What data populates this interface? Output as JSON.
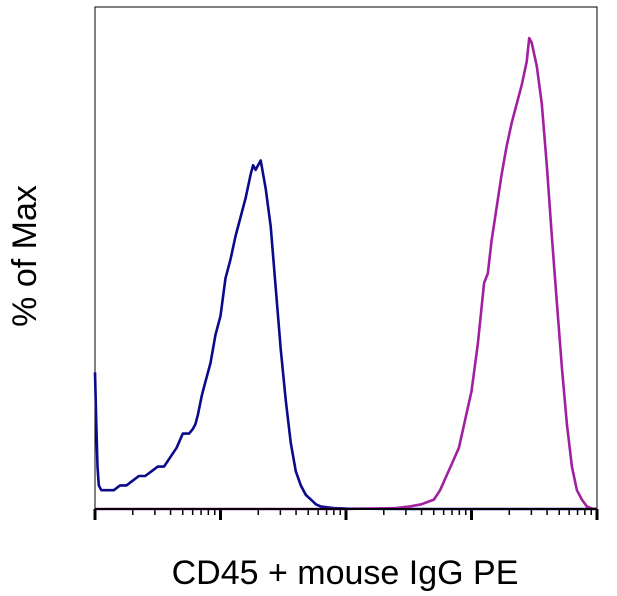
{
  "chart_data": {
    "type": "line",
    "title": "",
    "xlabel": "CD45 + mouse IgG PE",
    "ylabel": "% of Max",
    "x_scale": "log",
    "x_range_decades": [
      0,
      4
    ],
    "y_range": [
      0,
      100
    ],
    "grid": false,
    "legend": "none",
    "series": [
      {
        "color": "#0a0a8a",
        "points": [
          [
            0.0,
            29
          ],
          [
            0.01,
            18
          ],
          [
            0.02,
            9
          ],
          [
            0.03,
            5
          ],
          [
            0.05,
            4
          ],
          [
            0.1,
            4
          ],
          [
            0.15,
            4
          ],
          [
            0.2,
            5
          ],
          [
            0.25,
            5
          ],
          [
            0.3,
            6
          ],
          [
            0.35,
            7
          ],
          [
            0.4,
            7
          ],
          [
            0.45,
            8
          ],
          [
            0.5,
            9
          ],
          [
            0.55,
            9
          ],
          [
            0.6,
            11
          ],
          [
            0.65,
            13
          ],
          [
            0.7,
            16
          ],
          [
            0.75,
            16
          ],
          [
            0.78,
            17
          ],
          [
            0.8,
            18
          ],
          [
            0.82,
            20
          ],
          [
            0.85,
            24
          ],
          [
            0.88,
            27
          ],
          [
            0.92,
            31
          ],
          [
            0.96,
            37
          ],
          [
            1.0,
            41
          ],
          [
            1.04,
            49
          ],
          [
            1.08,
            53
          ],
          [
            1.12,
            58
          ],
          [
            1.16,
            62
          ],
          [
            1.2,
            66
          ],
          [
            1.24,
            71
          ],
          [
            1.26,
            73
          ],
          [
            1.28,
            72
          ],
          [
            1.3,
            73
          ],
          [
            1.32,
            74
          ],
          [
            1.36,
            68
          ],
          [
            1.4,
            60
          ],
          [
            1.44,
            47
          ],
          [
            1.48,
            34
          ],
          [
            1.52,
            23
          ],
          [
            1.56,
            14
          ],
          [
            1.6,
            8
          ],
          [
            1.64,
            5
          ],
          [
            1.68,
            3
          ],
          [
            1.72,
            2
          ],
          [
            1.76,
            1
          ],
          [
            1.8,
            0.5
          ],
          [
            1.9,
            0.2
          ],
          [
            2.0,
            0.1
          ],
          [
            2.5,
            0
          ],
          [
            3.0,
            0
          ],
          [
            3.5,
            0
          ],
          [
            4.0,
            0
          ]
        ]
      },
      {
        "color": "#a020a0",
        "points": [
          [
            0.0,
            0
          ],
          [
            1.5,
            0
          ],
          [
            2.0,
            0
          ],
          [
            2.4,
            0.2
          ],
          [
            2.5,
            0.5
          ],
          [
            2.6,
            1
          ],
          [
            2.7,
            2
          ],
          [
            2.75,
            4
          ],
          [
            2.8,
            7
          ],
          [
            2.85,
            10
          ],
          [
            2.9,
            13
          ],
          [
            2.95,
            19
          ],
          [
            3.0,
            25
          ],
          [
            3.05,
            35
          ],
          [
            3.1,
            48
          ],
          [
            3.13,
            50
          ],
          [
            3.16,
            57
          ],
          [
            3.2,
            64
          ],
          [
            3.24,
            71
          ],
          [
            3.28,
            77
          ],
          [
            3.32,
            82
          ],
          [
            3.36,
            86
          ],
          [
            3.4,
            90
          ],
          [
            3.44,
            95
          ],
          [
            3.46,
            100
          ],
          [
            3.48,
            99
          ],
          [
            3.52,
            94
          ],
          [
            3.56,
            86
          ],
          [
            3.6,
            73
          ],
          [
            3.64,
            58
          ],
          [
            3.68,
            44
          ],
          [
            3.72,
            30
          ],
          [
            3.76,
            18
          ],
          [
            3.8,
            9
          ],
          [
            3.84,
            4
          ],
          [
            3.88,
            2
          ],
          [
            3.92,
            0.5
          ],
          [
            3.96,
            0.1
          ],
          [
            4.0,
            0
          ]
        ]
      }
    ]
  }
}
